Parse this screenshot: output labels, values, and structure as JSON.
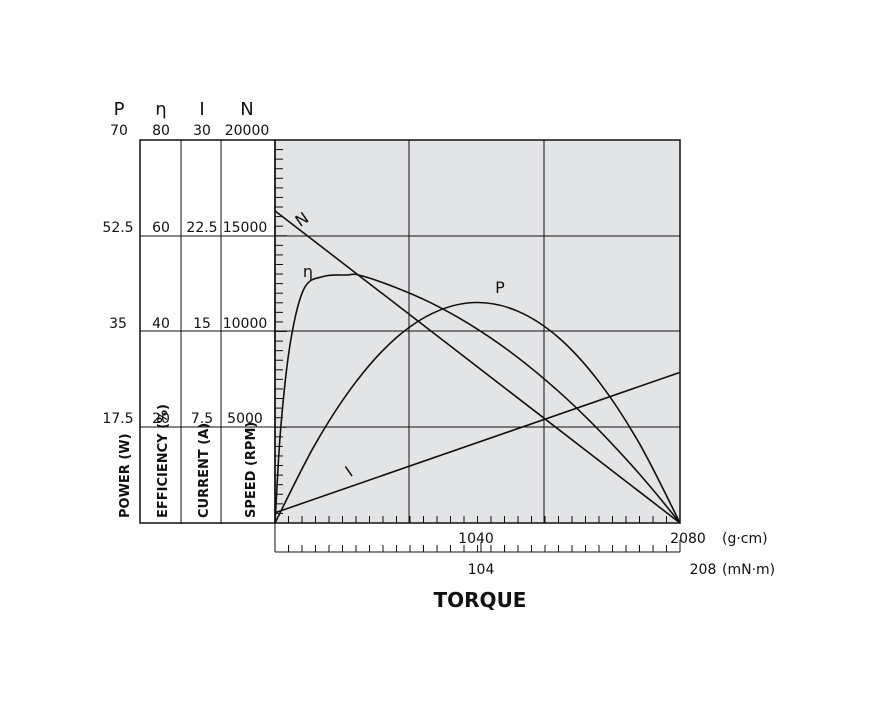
{
  "chart_data": {
    "type": "line",
    "title": "",
    "xlabel": "TORQUE",
    "x_units": {
      "primary": "(g·cm)",
      "secondary": "(mN·m)"
    },
    "x_tick_labels": {
      "primary": [
        "1040",
        "2080"
      ],
      "secondary": [
        "104",
        "208"
      ]
    },
    "xlim": [
      0,
      2080
    ],
    "axes": [
      {
        "symbol": "P",
        "caption": "POWER (W)",
        "max_label": "70",
        "ticks": [
          "17.5",
          "35",
          "52.5",
          "70"
        ],
        "ylim": [
          0,
          70
        ]
      },
      {
        "symbol": "η",
        "caption": "EFFICIENCY (%)",
        "max_label": "80",
        "ticks": [
          "20",
          "40",
          "60",
          "80"
        ],
        "ylim": [
          0,
          80
        ]
      },
      {
        "symbol": "I",
        "caption": "CURRENT (A)",
        "max_label": "30",
        "ticks": [
          "7.5",
          "15",
          "22.5",
          "30"
        ],
        "ylim": [
          0,
          30
        ]
      },
      {
        "symbol": "N",
        "caption": "SPEED (RPM)",
        "max_label": "20000",
        "ticks": [
          "5000",
          "10000",
          "15000",
          "20000"
        ],
        "ylim": [
          0,
          20000
        ]
      }
    ],
    "grid": true,
    "series": [
      {
        "name": "N",
        "axis": 3,
        "x": [
          0,
          2080
        ],
        "y": [
          16300,
          0
        ]
      },
      {
        "name": "I",
        "axis": 2,
        "x": [
          0,
          2080
        ],
        "y": [
          0.8,
          11.8
        ]
      },
      {
        "name": "P",
        "axis": 0,
        "x": [
          0,
          208,
          416,
          624,
          832,
          1040,
          1248,
          1456,
          1664,
          1872,
          2080
        ],
        "y": [
          0,
          14.5,
          25.8,
          33.9,
          38.7,
          40.3,
          38.7,
          33.9,
          25.8,
          14.5,
          0
        ]
      },
      {
        "name": "η",
        "axis": 1,
        "x": [
          0,
          30,
          80,
          150,
          250,
          370,
          430,
          600,
          800,
          1000,
          1200,
          1400,
          1600,
          1800,
          1950,
          2080
        ],
        "y": [
          0,
          20,
          38,
          49,
          51.5,
          51.8,
          51.8,
          49.5,
          46,
          41.5,
          36,
          29.5,
          22,
          13.5,
          6.5,
          0
        ]
      }
    ]
  }
}
